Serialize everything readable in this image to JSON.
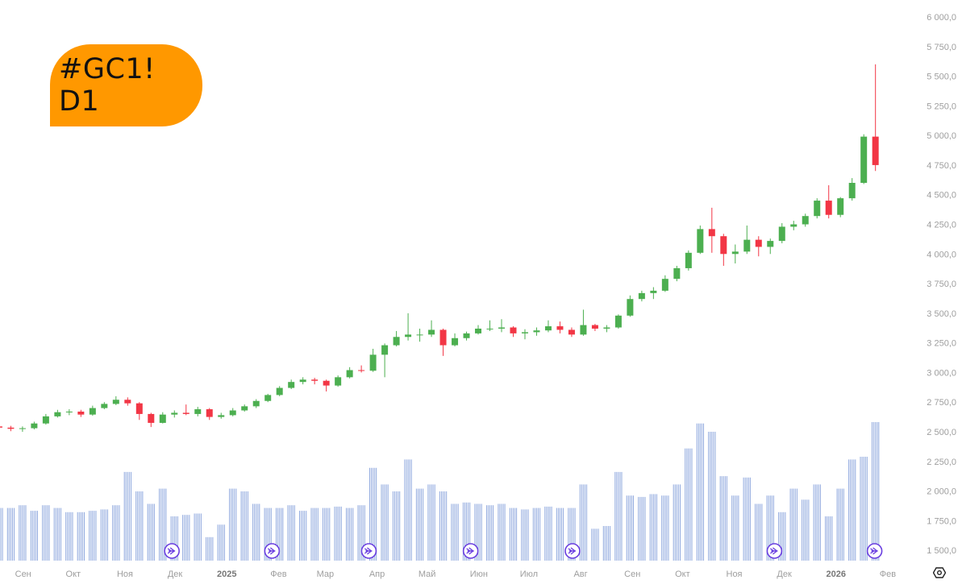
{
  "badge": {
    "label": "#GC1! D1",
    "color": "#FF9800"
  },
  "settings_icon": "hexagon-settings-icon",
  "chart_data": {
    "type": "candlestick",
    "interval": "weekly-approximation of daily chart",
    "colors": {
      "up": "#4CAF50",
      "down": "#F23645",
      "volume": "#8FA8DE",
      "event_marker": "#6A3FE0",
      "axis_text": "#9E9E9E"
    },
    "ylim": [
      1400,
      6000
    ],
    "y_ticks": [
      {
        "value": 6000,
        "label": "6 000,0"
      },
      {
        "value": 5750,
        "label": "5 750,0"
      },
      {
        "value": 5500,
        "label": "5 500,0"
      },
      {
        "value": 5250,
        "label": "5 250,0"
      },
      {
        "value": 5000,
        "label": "5 000,0"
      },
      {
        "value": 4750,
        "label": "4 750,0"
      },
      {
        "value": 4500,
        "label": "4 500,0"
      },
      {
        "value": 4250,
        "label": "4 250,0"
      },
      {
        "value": 4000,
        "label": "4 000,0"
      },
      {
        "value": 3750,
        "label": "3 750,0"
      },
      {
        "value": 3500,
        "label": "3 500,0"
      },
      {
        "value": 3250,
        "label": "3 250,0"
      },
      {
        "value": 3000,
        "label": "3 000,0"
      },
      {
        "value": 2750,
        "label": "2 750,0"
      },
      {
        "value": 2500,
        "label": "2 500,0"
      },
      {
        "value": 2250,
        "label": "2 250,0"
      },
      {
        "value": 2000,
        "label": "2 000,0"
      },
      {
        "value": 1750,
        "label": "1 750,0"
      },
      {
        "value": 1500,
        "label": "1 500,0"
      }
    ],
    "x_ticks": [
      {
        "date": "2024-09-01",
        "label": "Сен",
        "bold": false
      },
      {
        "date": "2024-10-01",
        "label": "Окт",
        "bold": false
      },
      {
        "date": "2024-11-01",
        "label": "Ноя",
        "bold": false
      },
      {
        "date": "2024-12-01",
        "label": "Дек",
        "bold": false
      },
      {
        "date": "2025-01-01",
        "label": "2025",
        "bold": true
      },
      {
        "date": "2025-02-01",
        "label": "Фев",
        "bold": false
      },
      {
        "date": "2025-03-01",
        "label": "Мар",
        "bold": false
      },
      {
        "date": "2025-04-01",
        "label": "Апр",
        "bold": false
      },
      {
        "date": "2025-05-01",
        "label": "Май",
        "bold": false
      },
      {
        "date": "2025-06-01",
        "label": "Июн",
        "bold": false
      },
      {
        "date": "2025-07-01",
        "label": "Июл",
        "bold": false
      },
      {
        "date": "2025-08-01",
        "label": "Авг",
        "bold": false
      },
      {
        "date": "2025-09-01",
        "label": "Сен",
        "bold": false
      },
      {
        "date": "2025-10-01",
        "label": "Окт",
        "bold": false
      },
      {
        "date": "2025-11-01",
        "label": "Ноя",
        "bold": false
      },
      {
        "date": "2025-12-01",
        "label": "Дек",
        "bold": false
      },
      {
        "date": "2026-01-01",
        "label": "2026",
        "bold": true
      },
      {
        "date": "2026-02-01",
        "label": "Фев",
        "bold": false
      }
    ],
    "candles_columns": [
      "week_start",
      "open",
      "high",
      "low",
      "close"
    ],
    "candles": [
      [
        "2024-08-19",
        2545,
        2560,
        2515,
        2535
      ],
      [
        "2024-08-26",
        2535,
        2550,
        2505,
        2525
      ],
      [
        "2024-09-02",
        2525,
        2545,
        2500,
        2530
      ],
      [
        "2024-09-09",
        2530,
        2585,
        2520,
        2570
      ],
      [
        "2024-09-16",
        2570,
        2650,
        2560,
        2630
      ],
      [
        "2024-09-23",
        2630,
        2685,
        2620,
        2665
      ],
      [
        "2024-09-30",
        2665,
        2690,
        2640,
        2670
      ],
      [
        "2024-10-07",
        2670,
        2685,
        2625,
        2645
      ],
      [
        "2024-10-14",
        2645,
        2720,
        2635,
        2700
      ],
      [
        "2024-10-21",
        2700,
        2750,
        2690,
        2735
      ],
      [
        "2024-10-28",
        2735,
        2800,
        2725,
        2770
      ],
      [
        "2024-11-04",
        2770,
        2790,
        2720,
        2740
      ],
      [
        "2024-11-11",
        2740,
        2750,
        2600,
        2650
      ],
      [
        "2024-11-18",
        2650,
        2660,
        2540,
        2575
      ],
      [
        "2024-11-25",
        2575,
        2665,
        2570,
        2645
      ],
      [
        "2024-12-02",
        2645,
        2680,
        2620,
        2660
      ],
      [
        "2024-12-09",
        2660,
        2730,
        2640,
        2650
      ],
      [
        "2024-12-16",
        2650,
        2710,
        2630,
        2690
      ],
      [
        "2024-12-23",
        2690,
        2700,
        2600,
        2625
      ],
      [
        "2024-12-30",
        2625,
        2660,
        2610,
        2640
      ],
      [
        "2025-01-06",
        2640,
        2700,
        2630,
        2680
      ],
      [
        "2025-01-13",
        2680,
        2730,
        2670,
        2715
      ],
      [
        "2025-01-20",
        2715,
        2775,
        2700,
        2760
      ],
      [
        "2025-01-27",
        2760,
        2820,
        2750,
        2810
      ],
      [
        "2025-02-03",
        2810,
        2885,
        2800,
        2870
      ],
      [
        "2025-02-10",
        2870,
        2940,
        2860,
        2920
      ],
      [
        "2025-02-17",
        2920,
        2960,
        2900,
        2940
      ],
      [
        "2025-02-24",
        2940,
        2955,
        2900,
        2930
      ],
      [
        "2025-03-03",
        2930,
        2940,
        2840,
        2890
      ],
      [
        "2025-03-10",
        2890,
        2975,
        2880,
        2960
      ],
      [
        "2025-03-17",
        2960,
        3045,
        2950,
        3020
      ],
      [
        "2025-03-24",
        3020,
        3060,
        3000,
        3015
      ],
      [
        "2025-03-31",
        3015,
        3200,
        3005,
        3150
      ],
      [
        "2025-04-07",
        3150,
        3245,
        2960,
        3230
      ],
      [
        "2025-04-14",
        3230,
        3350,
        3220,
        3300
      ],
      [
        "2025-04-21",
        3300,
        3500,
        3270,
        3320
      ],
      [
        "2025-04-28",
        3320,
        3370,
        3260,
        3320
      ],
      [
        "2025-05-05",
        3320,
        3440,
        3300,
        3360
      ],
      [
        "2025-05-12",
        3360,
        3370,
        3140,
        3230
      ],
      [
        "2025-05-19",
        3230,
        3330,
        3220,
        3290
      ],
      [
        "2025-05-26",
        3290,
        3345,
        3270,
        3330
      ],
      [
        "2025-06-02",
        3330,
        3400,
        3320,
        3370
      ],
      [
        "2025-06-09",
        3370,
        3440,
        3350,
        3370
      ],
      [
        "2025-06-16",
        3370,
        3450,
        3340,
        3380
      ],
      [
        "2025-06-23",
        3380,
        3390,
        3300,
        3330
      ],
      [
        "2025-06-30",
        3330,
        3365,
        3280,
        3340
      ],
      [
        "2025-07-07",
        3340,
        3380,
        3310,
        3355
      ],
      [
        "2025-07-14",
        3355,
        3440,
        3340,
        3390
      ],
      [
        "2025-07-21",
        3390,
        3430,
        3330,
        3360
      ],
      [
        "2025-07-28",
        3360,
        3380,
        3300,
        3320
      ],
      [
        "2025-08-04",
        3320,
        3530,
        3310,
        3400
      ],
      [
        "2025-08-11",
        3400,
        3410,
        3350,
        3370
      ],
      [
        "2025-08-18",
        3370,
        3400,
        3340,
        3380
      ],
      [
        "2025-08-25",
        3380,
        3490,
        3370,
        3480
      ],
      [
        "2025-09-01",
        3480,
        3650,
        3470,
        3620
      ],
      [
        "2025-09-08",
        3620,
        3690,
        3600,
        3670
      ],
      [
        "2025-09-15",
        3670,
        3720,
        3620,
        3690
      ],
      [
        "2025-09-22",
        3690,
        3820,
        3680,
        3790
      ],
      [
        "2025-09-29",
        3790,
        3900,
        3770,
        3880
      ],
      [
        "2025-10-06",
        3880,
        4030,
        3860,
        4010
      ],
      [
        "2025-10-13",
        4010,
        4240,
        4000,
        4210
      ],
      [
        "2025-10-20",
        4210,
        4390,
        4010,
        4150
      ],
      [
        "2025-10-27",
        4150,
        4170,
        3900,
        4000
      ],
      [
        "2025-11-03",
        4000,
        4080,
        3920,
        4020
      ],
      [
        "2025-11-10",
        4020,
        4240,
        4000,
        4120
      ],
      [
        "2025-11-17",
        4120,
        4150,
        3980,
        4060
      ],
      [
        "2025-11-24",
        4060,
        4130,
        4000,
        4110
      ],
      [
        "2025-12-01",
        4110,
        4260,
        4090,
        4230
      ],
      [
        "2025-12-08",
        4230,
        4280,
        4200,
        4250
      ],
      [
        "2025-12-15",
        4250,
        4340,
        4230,
        4320
      ],
      [
        "2025-12-22",
        4320,
        4470,
        4300,
        4450
      ],
      [
        "2025-12-29",
        4450,
        4580,
        4300,
        4330
      ],
      [
        "2026-01-05",
        4330,
        4480,
        4310,
        4470
      ],
      [
        "2026-01-12",
        4470,
        4640,
        4450,
        4600
      ],
      [
        "2026-01-19",
        4600,
        5010,
        4590,
        4990
      ],
      [
        "2026-01-26",
        4990,
        5600,
        4700,
        4750
      ]
    ],
    "volume_relative": [
      0.38,
      0.38,
      0.4,
      0.36,
      0.4,
      0.38,
      0.35,
      0.35,
      0.36,
      0.37,
      0.4,
      0.64,
      0.5,
      0.41,
      0.52,
      0.32,
      0.33,
      0.34,
      0.17,
      0.26,
      0.52,
      0.5,
      0.41,
      0.38,
      0.38,
      0.4,
      0.36,
      0.38,
      0.38,
      0.39,
      0.38,
      0.4,
      0.67,
      0.55,
      0.5,
      0.73,
      0.52,
      0.55,
      0.5,
      0.41,
      0.42,
      0.41,
      0.4,
      0.41,
      0.38,
      0.37,
      0.38,
      0.39,
      0.38,
      0.38,
      0.55,
      0.23,
      0.25,
      0.64,
      0.47,
      0.46,
      0.48,
      0.47,
      0.55,
      0.81,
      0.99,
      0.93,
      0.61,
      0.47,
      0.6,
      0.41,
      0.47,
      0.35,
      0.52,
      0.44,
      0.55,
      0.32,
      0.52,
      0.73,
      0.75,
      1.0
    ],
    "event_markers": [
      "2024-12-02",
      "2025-01-31",
      "2025-03-30",
      "2025-05-30",
      "2025-07-30",
      "2025-11-28",
      "2026-01-27"
    ],
    "event_marker_icon": "circled-arrow-icon"
  }
}
